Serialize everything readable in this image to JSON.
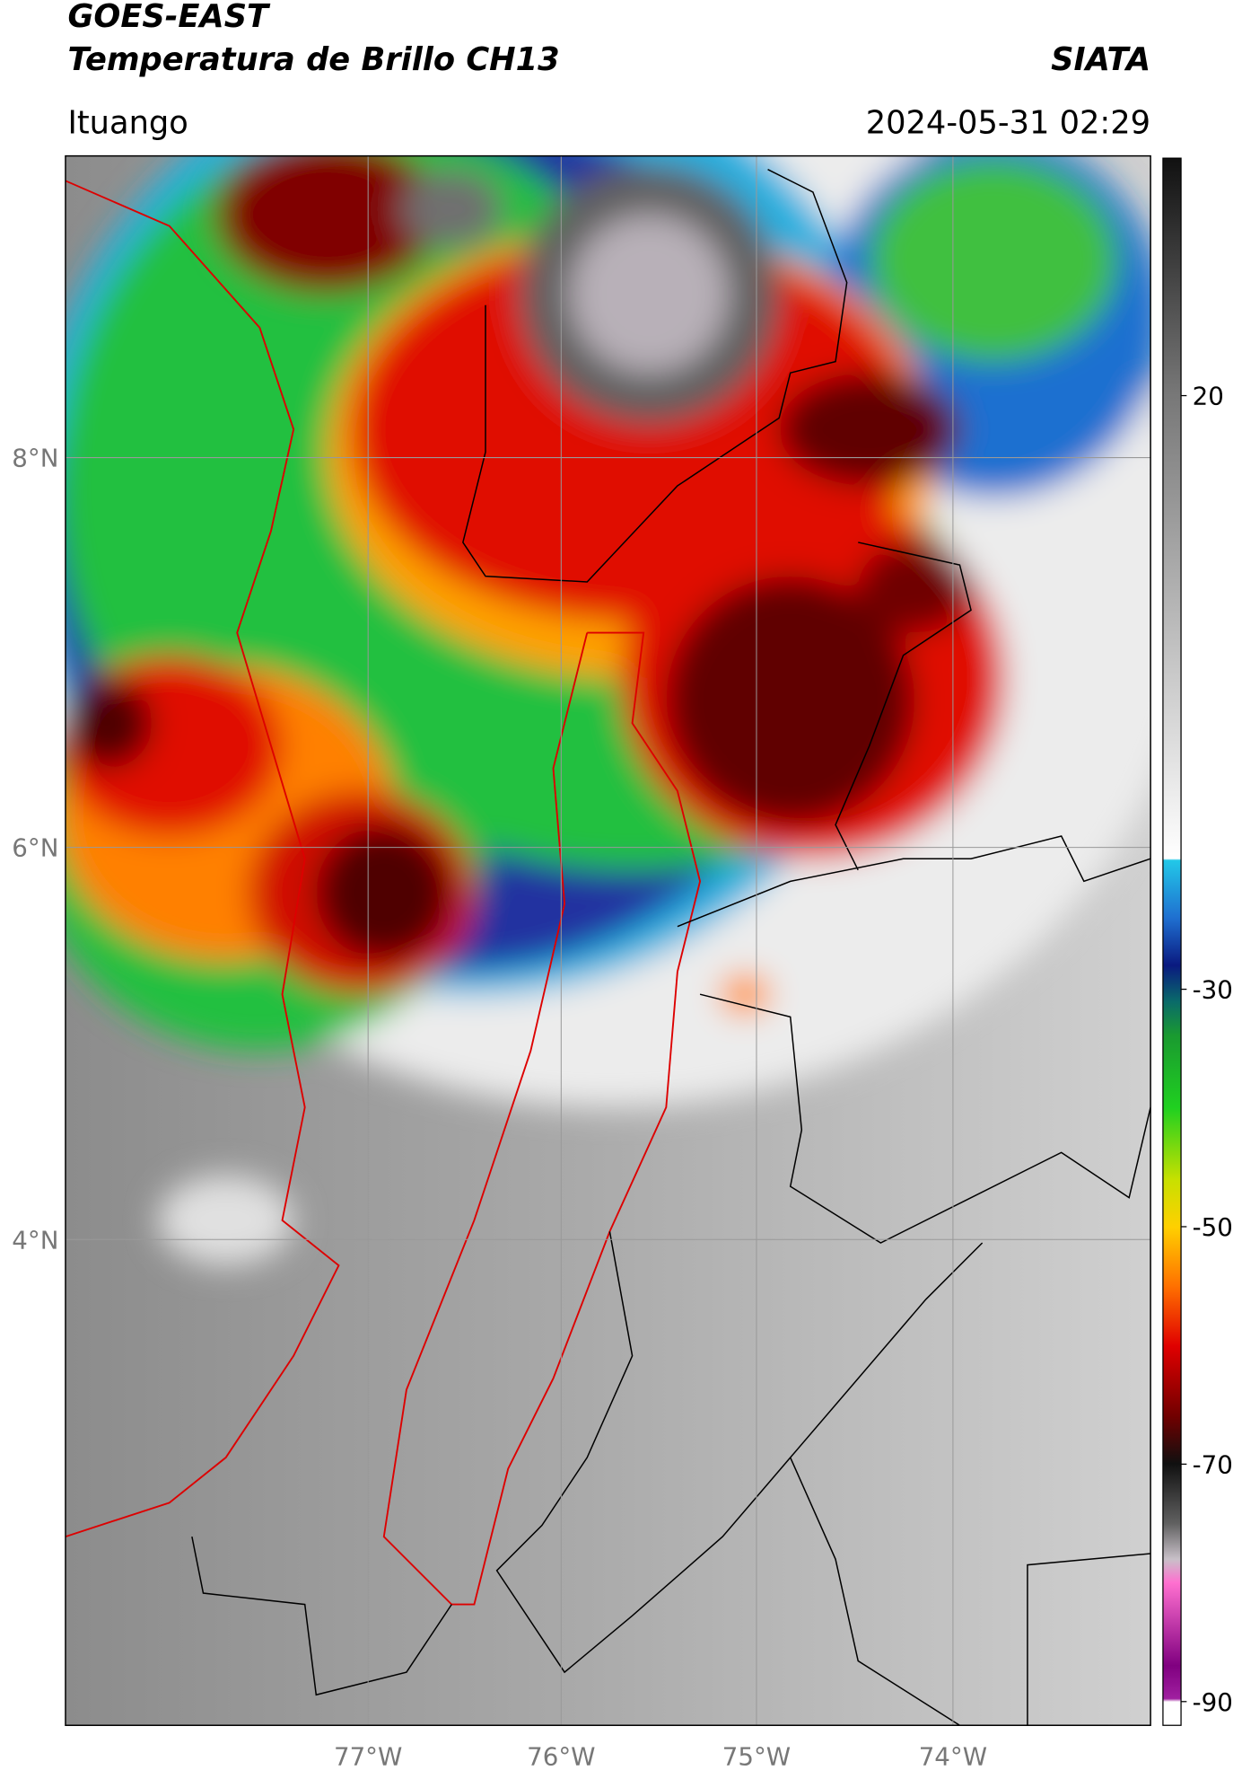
{
  "header": {
    "satellite": "GOES-EAST",
    "product": "Temperatura de Brillo CH13",
    "organization": "SIATA",
    "location": "Ituango",
    "datetime": "2024-05-31 02:29"
  },
  "map": {
    "lat_labels": [
      "8°N",
      "6°N",
      "4°N"
    ],
    "lon_labels": [
      "77°W",
      "76°W",
      "75°W",
      "74°W"
    ]
  },
  "colorbar": {
    "ticks": [
      20,
      -30,
      -50,
      -70,
      -90
    ],
    "vlim": [
      -92,
      40
    ]
  }
}
